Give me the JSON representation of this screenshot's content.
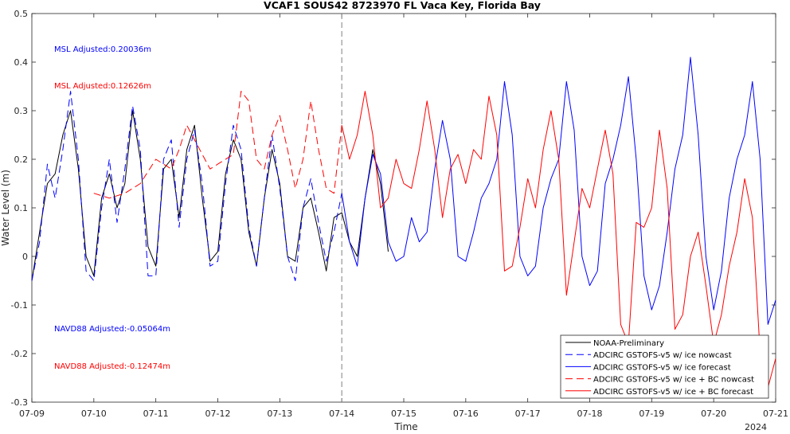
{
  "chart_data": {
    "type": "line",
    "title": "VCAF1 SOUS42 8723970 FL Vaca Key, Florida Bay",
    "xlabel": "Time",
    "ylabel": "Water Level (m)",
    "year_label": "2024",
    "ylim": [
      -0.3,
      0.5
    ],
    "yticks": [
      -0.3,
      -0.2,
      -0.1,
      0,
      0.1,
      0.2,
      0.3,
      0.4,
      0.5
    ],
    "ytick_labels": [
      "-0.3",
      "-0.2",
      "-0.1",
      "0",
      "0.1",
      "0.2",
      "0.3",
      "0.4",
      "0.5"
    ],
    "xlim": [
      "2024-07-09",
      "2024-07-21"
    ],
    "xticks": [
      "07-09",
      "07-10",
      "07-11",
      "07-12",
      "07-13",
      "07-14",
      "07-15",
      "07-16",
      "07-17",
      "07-18",
      "07-19",
      "07-20",
      "07-21"
    ],
    "nowcast_divider": "2024-07-14",
    "grid": false,
    "legend_position": "bottom-right",
    "annotations": [
      {
        "text": "MSL Adjusted:0.20036m",
        "color": "#0000ff"
      },
      {
        "text": "MSL Adjusted:0.12626m",
        "color": "#ff0000"
      },
      {
        "text": "NAVD88 Adjusted:-0.05064m",
        "color": "#0000ff"
      },
      {
        "text": "NAVD88 Adjusted:-0.12474m",
        "color": "#ff0000"
      }
    ],
    "series": [
      {
        "name": "NOAA-Preliminary",
        "color": "#000000",
        "dash": "solid",
        "x": [
          "2024-07-09 00:00",
          "2024-07-09 03:00",
          "2024-07-09 06:00",
          "2024-07-09 09:00",
          "2024-07-09 12:00",
          "2024-07-09 15:00",
          "2024-07-09 18:00",
          "2024-07-09 21:00",
          "2024-07-10 00:00",
          "2024-07-10 03:00",
          "2024-07-10 06:00",
          "2024-07-10 09:00",
          "2024-07-10 12:00",
          "2024-07-10 15:00",
          "2024-07-10 18:00",
          "2024-07-10 21:00",
          "2024-07-11 00:00",
          "2024-07-11 03:00",
          "2024-07-11 06:00",
          "2024-07-11 09:00",
          "2024-07-11 12:00",
          "2024-07-11 15:00",
          "2024-07-11 18:00",
          "2024-07-11 21:00",
          "2024-07-12 00:00",
          "2024-07-12 03:00",
          "2024-07-12 06:00",
          "2024-07-12 09:00",
          "2024-07-12 12:00",
          "2024-07-12 15:00",
          "2024-07-12 18:00",
          "2024-07-12 21:00",
          "2024-07-13 00:00",
          "2024-07-13 03:00",
          "2024-07-13 06:00",
          "2024-07-13 09:00",
          "2024-07-13 12:00",
          "2024-07-13 15:00",
          "2024-07-13 18:00",
          "2024-07-13 21:00",
          "2024-07-14 00:00",
          "2024-07-14 03:00",
          "2024-07-14 06:00",
          "2024-07-14 09:00",
          "2024-07-14 12:00",
          "2024-07-14 15:00",
          "2024-07-14 18:00"
        ],
        "y": [
          -0.05,
          0.05,
          0.15,
          0.17,
          0.25,
          0.3,
          0.18,
          0.0,
          -0.04,
          0.12,
          0.17,
          0.1,
          0.15,
          0.3,
          0.2,
          0.02,
          -0.02,
          0.18,
          0.2,
          0.08,
          0.22,
          0.27,
          0.12,
          -0.01,
          0.01,
          0.17,
          0.24,
          0.2,
          0.05,
          -0.02,
          0.12,
          0.22,
          0.15,
          0.0,
          -0.01,
          0.1,
          0.12,
          0.05,
          -0.03,
          0.08,
          0.09,
          0.03,
          0.0,
          0.12,
          0.22,
          0.15,
          0.01
        ]
      },
      {
        "name": "ADCIRC GSTOFS-v5 w/ ice nowcast",
        "color": "#0000ff",
        "dash": "long-dash",
        "x": [
          "2024-07-09 00:00",
          "2024-07-09 03:00",
          "2024-07-09 06:00",
          "2024-07-09 09:00",
          "2024-07-09 12:00",
          "2024-07-09 15:00",
          "2024-07-09 18:00",
          "2024-07-09 21:00",
          "2024-07-10 00:00",
          "2024-07-10 03:00",
          "2024-07-10 06:00",
          "2024-07-10 09:00",
          "2024-07-10 12:00",
          "2024-07-10 15:00",
          "2024-07-10 18:00",
          "2024-07-10 21:00",
          "2024-07-11 00:00",
          "2024-07-11 03:00",
          "2024-07-11 06:00",
          "2024-07-11 09:00",
          "2024-07-11 12:00",
          "2024-07-11 15:00",
          "2024-07-11 18:00",
          "2024-07-11 21:00",
          "2024-07-12 00:00",
          "2024-07-12 03:00",
          "2024-07-12 06:00",
          "2024-07-12 09:00",
          "2024-07-12 12:00",
          "2024-07-12 15:00",
          "2024-07-12 18:00",
          "2024-07-12 21:00",
          "2024-07-13 00:00",
          "2024-07-13 03:00",
          "2024-07-13 06:00",
          "2024-07-13 09:00",
          "2024-07-13 12:00",
          "2024-07-13 15:00",
          "2024-07-13 18:00",
          "2024-07-13 21:00",
          "2024-07-14 00:00"
        ],
        "y": [
          -0.05,
          0.03,
          0.19,
          0.12,
          0.22,
          0.34,
          0.2,
          -0.03,
          -0.05,
          0.1,
          0.2,
          0.07,
          0.18,
          0.31,
          0.22,
          -0.04,
          -0.04,
          0.2,
          0.24,
          0.06,
          0.2,
          0.26,
          0.15,
          -0.02,
          -0.01,
          0.15,
          0.27,
          0.22,
          0.06,
          -0.02,
          0.12,
          0.25,
          0.14,
          0.0,
          -0.05,
          0.1,
          0.16,
          0.07,
          -0.01,
          0.05,
          0.13
        ]
      },
      {
        "name": "ADCIRC GSTOFS-v5 w/ ice forecast",
        "color": "#0000ff",
        "dash": "solid",
        "x": [
          "2024-07-14 00:00",
          "2024-07-14 03:00",
          "2024-07-14 06:00",
          "2024-07-14 09:00",
          "2024-07-14 12:00",
          "2024-07-14 15:00",
          "2024-07-14 18:00",
          "2024-07-14 21:00",
          "2024-07-15 00:00",
          "2024-07-15 03:00",
          "2024-07-15 06:00",
          "2024-07-15 09:00",
          "2024-07-15 12:00",
          "2024-07-15 15:00",
          "2024-07-15 18:00",
          "2024-07-15 21:00",
          "2024-07-16 00:00",
          "2024-07-16 03:00",
          "2024-07-16 06:00",
          "2024-07-16 09:00",
          "2024-07-16 12:00",
          "2024-07-16 15:00",
          "2024-07-16 18:00",
          "2024-07-16 21:00",
          "2024-07-17 00:00",
          "2024-07-17 03:00",
          "2024-07-17 06:00",
          "2024-07-17 09:00",
          "2024-07-17 12:00",
          "2024-07-17 15:00",
          "2024-07-17 18:00",
          "2024-07-17 21:00",
          "2024-07-18 00:00",
          "2024-07-18 03:00",
          "2024-07-18 06:00",
          "2024-07-18 09:00",
          "2024-07-18 12:00",
          "2024-07-18 15:00",
          "2024-07-18 18:00",
          "2024-07-18 21:00",
          "2024-07-19 00:00",
          "2024-07-19 03:00",
          "2024-07-19 06:00",
          "2024-07-19 09:00",
          "2024-07-19 12:00",
          "2024-07-19 15:00",
          "2024-07-19 18:00",
          "2024-07-19 21:00",
          "2024-07-20 00:00",
          "2024-07-20 03:00",
          "2024-07-20 06:00",
          "2024-07-20 09:00",
          "2024-07-20 12:00",
          "2024-07-20 15:00",
          "2024-07-20 18:00",
          "2024-07-20 21:00",
          "2024-07-21 00:00"
        ],
        "y": [
          0.13,
          0.03,
          -0.02,
          0.12,
          0.21,
          0.17,
          0.03,
          -0.01,
          0.0,
          0.08,
          0.03,
          0.05,
          0.18,
          0.28,
          0.2,
          0.0,
          -0.01,
          0.05,
          0.12,
          0.15,
          0.2,
          0.36,
          0.25,
          0.0,
          -0.04,
          -0.02,
          0.1,
          0.16,
          0.2,
          0.36,
          0.26,
          0.0,
          -0.06,
          -0.03,
          0.15,
          0.2,
          0.27,
          0.37,
          0.2,
          -0.04,
          -0.11,
          -0.06,
          0.05,
          0.18,
          0.25,
          0.41,
          0.25,
          0.0,
          -0.11,
          -0.03,
          0.12,
          0.2,
          0.25,
          0.36,
          0.2,
          -0.14,
          -0.09
        ]
      },
      {
        "name": "ADCIRC GSTOFS-v5 w/ ice + BC nowcast",
        "color": "#ff0000",
        "dash": "long-dash",
        "x": [
          "2024-07-10 00:00",
          "2024-07-10 06:00",
          "2024-07-10 12:00",
          "2024-07-10 18:00",
          "2024-07-11 00:00",
          "2024-07-11 06:00",
          "2024-07-11 09:00",
          "2024-07-11 12:00",
          "2024-07-11 18:00",
          "2024-07-11 21:00",
          "2024-07-12 00:00",
          "2024-07-12 06:00",
          "2024-07-12 09:00",
          "2024-07-12 12:00",
          "2024-07-12 15:00",
          "2024-07-12 18:00",
          "2024-07-12 21:00",
          "2024-07-13 00:00",
          "2024-07-13 03:00",
          "2024-07-13 06:00",
          "2024-07-13 09:00",
          "2024-07-13 12:00",
          "2024-07-13 15:00",
          "2024-07-13 18:00",
          "2024-07-13 21:00",
          "2024-07-14 00:00"
        ],
        "y": [
          0.13,
          0.12,
          0.13,
          0.15,
          0.2,
          0.18,
          0.22,
          0.27,
          0.21,
          0.18,
          0.19,
          0.21,
          0.34,
          0.32,
          0.2,
          0.18,
          0.25,
          0.29,
          0.22,
          0.14,
          0.2,
          0.32,
          0.22,
          0.14,
          0.13,
          0.27
        ]
      },
      {
        "name": "ADCIRC GSTOFS-v5 w/ ice + BC forecast",
        "color": "#ff0000",
        "dash": "solid",
        "x": [
          "2024-07-14 00:00",
          "2024-07-14 03:00",
          "2024-07-14 06:00",
          "2024-07-14 09:00",
          "2024-07-14 12:00",
          "2024-07-14 15:00",
          "2024-07-14 18:00",
          "2024-07-14 21:00",
          "2024-07-15 00:00",
          "2024-07-15 03:00",
          "2024-07-15 06:00",
          "2024-07-15 09:00",
          "2024-07-15 12:00",
          "2024-07-15 15:00",
          "2024-07-15 18:00",
          "2024-07-15 21:00",
          "2024-07-16 00:00",
          "2024-07-16 03:00",
          "2024-07-16 06:00",
          "2024-07-16 09:00",
          "2024-07-16 12:00",
          "2024-07-16 15:00",
          "2024-07-16 18:00",
          "2024-07-16 21:00",
          "2024-07-17 00:00",
          "2024-07-17 03:00",
          "2024-07-17 06:00",
          "2024-07-17 09:00",
          "2024-07-17 12:00",
          "2024-07-17 15:00",
          "2024-07-17 18:00",
          "2024-07-17 21:00",
          "2024-07-18 00:00",
          "2024-07-18 03:00",
          "2024-07-18 06:00",
          "2024-07-18 09:00",
          "2024-07-18 12:00",
          "2024-07-18 15:00",
          "2024-07-18 18:00",
          "2024-07-18 21:00",
          "2024-07-19 00:00",
          "2024-07-19 03:00",
          "2024-07-19 06:00",
          "2024-07-19 09:00",
          "2024-07-19 12:00",
          "2024-07-19 15:00",
          "2024-07-19 18:00",
          "2024-07-19 21:00",
          "2024-07-20 00:00",
          "2024-07-20 03:00",
          "2024-07-20 06:00",
          "2024-07-20 09:00",
          "2024-07-20 12:00",
          "2024-07-20 15:00",
          "2024-07-20 18:00",
          "2024-07-20 21:00",
          "2024-07-21 00:00"
        ],
        "y": [
          0.27,
          0.2,
          0.25,
          0.34,
          0.25,
          0.1,
          0.12,
          0.2,
          0.15,
          0.14,
          0.22,
          0.32,
          0.22,
          0.08,
          0.18,
          0.21,
          0.15,
          0.22,
          0.2,
          0.33,
          0.25,
          -0.03,
          -0.02,
          0.06,
          0.16,
          0.1,
          0.22,
          0.3,
          0.2,
          -0.08,
          0.03,
          0.14,
          0.1,
          0.18,
          0.26,
          0.17,
          -0.14,
          -0.18,
          0.07,
          0.06,
          0.1,
          0.26,
          0.14,
          -0.15,
          -0.12,
          0.0,
          0.05,
          -0.06,
          -0.18,
          -0.12,
          -0.02,
          0.05,
          0.16,
          0.08,
          -0.2,
          -0.27,
          -0.21
        ]
      }
    ]
  }
}
